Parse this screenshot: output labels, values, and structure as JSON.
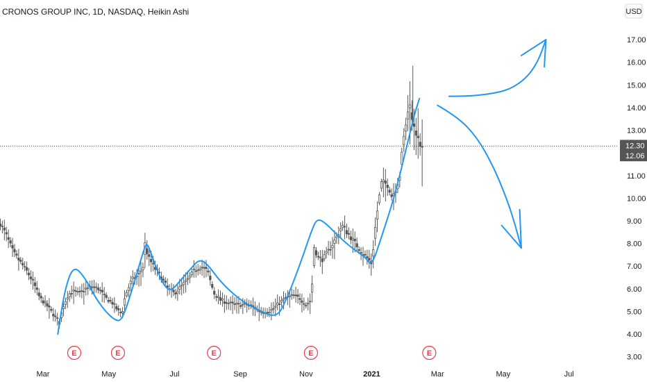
{
  "chart_data": {
    "type": "candlestick",
    "title": "CRONOS GROUP INC, 1D, NASDAQ, Heikin Ashi",
    "currency_label": "USD",
    "y_ticks": [
      "3.00",
      "4.00",
      "5.00",
      "6.00",
      "7.00",
      "8.00",
      "9.00",
      "10.00",
      "11.00",
      "12.00",
      "13.00",
      "14.00",
      "15.00",
      "16.00",
      "17.00"
    ],
    "ylim": [
      2.8,
      17.7
    ],
    "x_ticks": [
      {
        "label": "Mar",
        "t": 0,
        "bold": false
      },
      {
        "label": "May",
        "t": 2,
        "bold": false
      },
      {
        "label": "Jul",
        "t": 4,
        "bold": false
      },
      {
        "label": "Sep",
        "t": 6,
        "bold": false
      },
      {
        "label": "Nov",
        "t": 8,
        "bold": false
      },
      {
        "label": "2021",
        "t": 10,
        "bold": true
      },
      {
        "label": "Mar",
        "t": 12,
        "bold": false
      },
      {
        "label": "May",
        "t": 14,
        "bold": false
      },
      {
        "label": "Jul",
        "t": 16,
        "bold": false
      }
    ],
    "price_labels": [
      {
        "value": "12.30",
        "price": 12.3
      },
      {
        "value": "12.06",
        "price": 12.06
      }
    ],
    "current_price": 12.3,
    "earnings_markers": [
      {
        "label": "E",
        "t": 0.95
      },
      {
        "label": "E",
        "t": 2.28
      },
      {
        "label": "E",
        "t": 5.2
      },
      {
        "label": "E",
        "t": 8.15
      },
      {
        "label": "E",
        "t": 11.75
      }
    ],
    "series_points": [
      [
        -1.3,
        8.9
      ],
      [
        -1.1,
        8.3
      ],
      [
        -0.9,
        7.6
      ],
      [
        -0.7,
        7.2
      ],
      [
        -0.5,
        6.8
      ],
      [
        -0.3,
        6.3
      ],
      [
        -0.1,
        5.6
      ],
      [
        0.1,
        5.3
      ],
      [
        0.3,
        4.9
      ],
      [
        0.45,
        4.6
      ],
      [
        0.5,
        4.5
      ],
      [
        0.6,
        5.2
      ],
      [
        0.75,
        5.7
      ],
      [
        0.9,
        5.9
      ],
      [
        1.1,
        5.8
      ],
      [
        1.3,
        6.0
      ],
      [
        1.5,
        6.1
      ],
      [
        1.7,
        6.0
      ],
      [
        1.9,
        5.6
      ],
      [
        2.1,
        5.4
      ],
      [
        2.3,
        5.0
      ],
      [
        2.4,
        4.9
      ],
      [
        2.5,
        5.7
      ],
      [
        2.7,
        6.4
      ],
      [
        2.9,
        6.6
      ],
      [
        3.05,
        7.0
      ],
      [
        3.1,
        8.0
      ],
      [
        3.2,
        7.4
      ],
      [
        3.4,
        6.9
      ],
      [
        3.6,
        6.5
      ],
      [
        3.8,
        6.0
      ],
      [
        4.0,
        5.8
      ],
      [
        4.2,
        6.1
      ],
      [
        4.4,
        6.4
      ],
      [
        4.6,
        6.8
      ],
      [
        4.8,
        7.0
      ],
      [
        5.0,
        6.8
      ],
      [
        5.1,
        6.3
      ],
      [
        5.2,
        5.8
      ],
      [
        5.4,
        5.5
      ],
      [
        5.6,
        5.4
      ],
      [
        5.8,
        5.3
      ],
      [
        6.0,
        5.3
      ],
      [
        6.2,
        5.3
      ],
      [
        6.4,
        5.2
      ],
      [
        6.6,
        5.0
      ],
      [
        6.8,
        5.0
      ],
      [
        7.0,
        5.1
      ],
      [
        7.2,
        5.4
      ],
      [
        7.4,
        5.6
      ],
      [
        7.6,
        5.7
      ],
      [
        7.8,
        5.6
      ],
      [
        8.0,
        5.3
      ],
      [
        8.15,
        5.5
      ],
      [
        8.2,
        6.5
      ],
      [
        8.25,
        7.9
      ],
      [
        8.35,
        7.4
      ],
      [
        8.5,
        7.3
      ],
      [
        8.7,
        7.7
      ],
      [
        8.9,
        8.2
      ],
      [
        9.1,
        8.8
      ],
      [
        9.3,
        8.4
      ],
      [
        9.5,
        8.0
      ],
      [
        9.7,
        7.6
      ],
      [
        9.9,
        7.3
      ],
      [
        10.0,
        7.1
      ],
      [
        10.1,
        8.6
      ],
      [
        10.2,
        9.8
      ],
      [
        10.3,
        10.7
      ],
      [
        10.5,
        10.6
      ],
      [
        10.6,
        10.1
      ],
      [
        10.7,
        10.3
      ],
      [
        10.85,
        11.0
      ],
      [
        10.95,
        12.4
      ],
      [
        11.05,
        13.4
      ],
      [
        11.15,
        14.1
      ],
      [
        11.25,
        13.5
      ],
      [
        11.35,
        12.9
      ],
      [
        11.45,
        12.4
      ],
      [
        11.55,
        12.1
      ]
    ],
    "drawings": {
      "trend_curve": [
        [
          0.45,
          4.0
        ],
        [
          0.6,
          5.5
        ],
        [
          0.8,
          6.6
        ],
        [
          0.95,
          6.9
        ],
        [
          1.1,
          6.8
        ],
        [
          1.35,
          6.3
        ],
        [
          1.6,
          5.6
        ],
        [
          1.9,
          5.0
        ],
        [
          2.2,
          4.6
        ],
        [
          2.4,
          4.6
        ],
        [
          2.7,
          5.9
        ],
        [
          3.0,
          7.4
        ],
        [
          3.15,
          8.1
        ],
        [
          3.3,
          7.5
        ],
        [
          3.5,
          6.7
        ],
        [
          3.7,
          6.1
        ],
        [
          3.9,
          5.9
        ],
        [
          4.2,
          6.4
        ],
        [
          4.5,
          6.9
        ],
        [
          4.75,
          7.3
        ],
        [
          5.0,
          7.1
        ],
        [
          5.4,
          6.3
        ],
        [
          6.0,
          5.5
        ],
        [
          6.5,
          5.1
        ],
        [
          7.1,
          4.7
        ],
        [
          7.4,
          5.5
        ],
        [
          7.8,
          7.0
        ],
        [
          8.2,
          8.7
        ],
        [
          8.35,
          9.1
        ],
        [
          8.6,
          8.9
        ],
        [
          9.0,
          8.3
        ],
        [
          9.4,
          7.8
        ],
        [
          9.8,
          7.4
        ],
        [
          10.0,
          7.0
        ],
        [
          10.3,
          8.3
        ],
        [
          10.7,
          10.1
        ],
        [
          11.1,
          12.5
        ],
        [
          11.3,
          13.7
        ],
        [
          11.45,
          14.4
        ]
      ],
      "arrow_up_curve": [
        [
          12.35,
          14.5
        ],
        [
          12.9,
          14.5
        ],
        [
          13.6,
          14.6
        ],
        [
          14.2,
          14.8
        ],
        [
          14.7,
          15.3
        ],
        [
          15.05,
          16.0
        ],
        [
          15.3,
          17.0
        ]
      ],
      "arrow_up_head": [
        [
          14.55,
          16.3
        ],
        [
          15.3,
          17.0
        ],
        [
          15.25,
          15.8
        ]
      ],
      "arrow_down_curve": [
        [
          12.0,
          14.1
        ],
        [
          12.6,
          13.6
        ],
        [
          13.2,
          12.7
        ],
        [
          13.7,
          11.4
        ],
        [
          14.1,
          10.0
        ],
        [
          14.35,
          8.9
        ],
        [
          14.55,
          7.8
        ]
      ],
      "arrow_down_head": [
        [
          13.95,
          8.8
        ],
        [
          14.55,
          7.8
        ],
        [
          14.5,
          9.5
        ]
      ]
    },
    "colors": {
      "candles": "#555555",
      "drawing": "#2196f3",
      "earnings": "#f23645",
      "price_line": "#555555",
      "price_label_bg": "#555555",
      "grid_text": "#131722"
    }
  }
}
